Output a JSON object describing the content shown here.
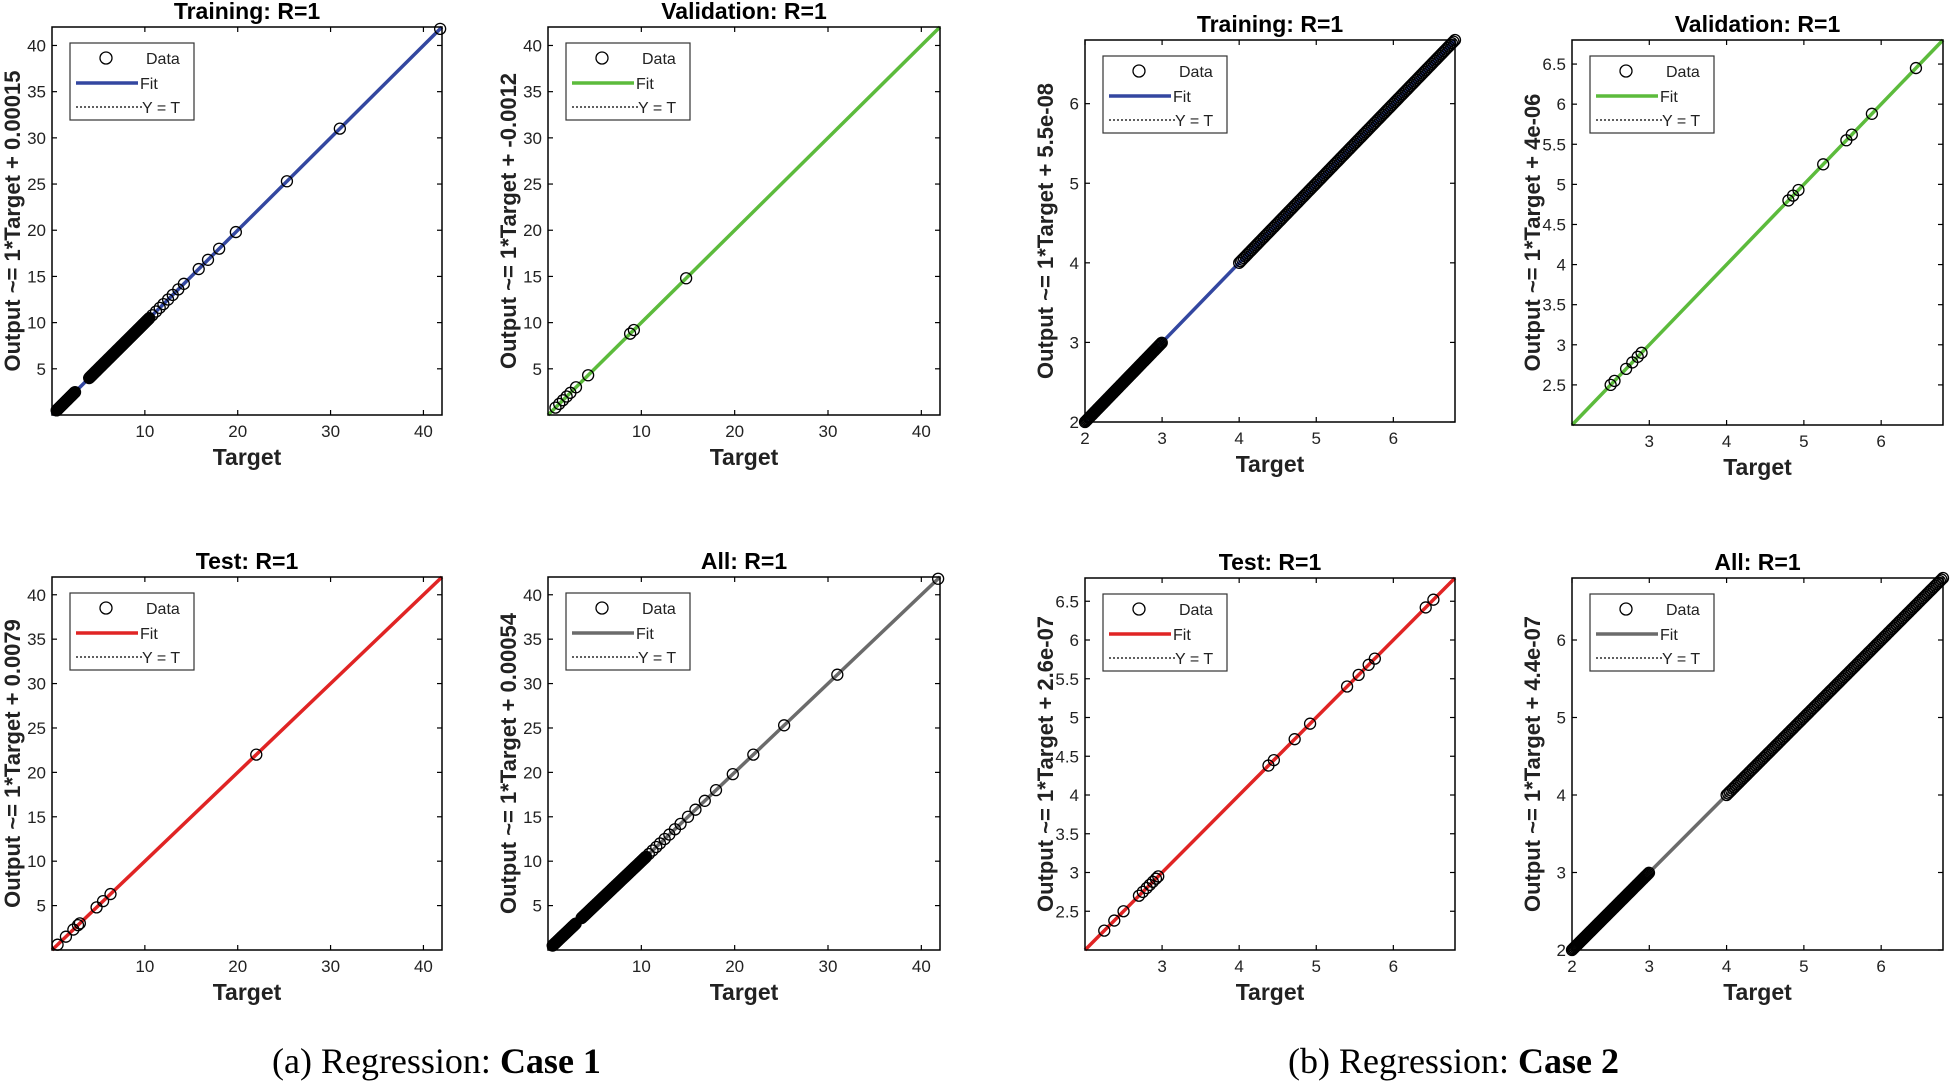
{
  "legend": {
    "data_label": "Data",
    "fit_label": "Fit",
    "yt_label": "Y = T"
  },
  "colors": {
    "training": "#3347a0",
    "validation": "#5cbb3c",
    "test": "#e02424",
    "all": "#6b6b6b",
    "marker": "#000000",
    "axis": "#000000"
  },
  "captions": {
    "case1": {
      "prefix": "(a) Regression: ",
      "bold": "Case 1"
    },
    "case2": {
      "prefix": "(b) Regression: ",
      "bold": "Case 2"
    }
  },
  "chart_data": [
    {
      "id": "c1-training",
      "type": "scatter",
      "group": "Case 1",
      "title": "Training: R=1",
      "xlabel": "Target",
      "ylabel": "Output ~= 1*Target + 0.00015",
      "xlim": [
        0,
        42
      ],
      "ylim": [
        0,
        42
      ],
      "xticks": [
        10,
        20,
        30,
        40
      ],
      "yticks": [
        5,
        10,
        15,
        20,
        25,
        30,
        35,
        40
      ],
      "fit_color_key": "training",
      "points": {
        "dense": [
          0.5,
          2.5,
          0.06,
          4,
          10.5,
          0.06
        ],
        "extra": [
          10.8,
          11.2,
          11.6,
          12,
          12.5,
          13,
          13.6,
          14.2,
          15.8,
          16.8,
          18,
          19.8,
          25.3,
          31,
          41.8
        ]
      }
    },
    {
      "id": "c1-validation",
      "type": "scatter",
      "group": "Case 1",
      "title": "Validation: R=1",
      "xlabel": "Target",
      "ylabel": "Output ~= 1*Target + -0.0012",
      "xlim": [
        0,
        42
      ],
      "ylim": [
        0,
        42
      ],
      "xticks": [
        10,
        20,
        30,
        40
      ],
      "yticks": [
        5,
        10,
        15,
        20,
        25,
        30,
        35,
        40
      ],
      "fit_color_key": "validation",
      "points": {
        "dense": [],
        "extra": [
          0.8,
          1.2,
          1.6,
          2,
          2.4,
          3,
          4.3,
          8.8,
          9.2,
          14.8
        ]
      }
    },
    {
      "id": "c2-training",
      "type": "scatter",
      "group": "Case 2",
      "title": "Training: R=1",
      "xlabel": "Target",
      "ylabel": "Output ~= 1*Target + 5.5e-08",
      "xlim": [
        2,
        6.8
      ],
      "ylim": [
        2,
        6.8
      ],
      "xticks": [
        2,
        3,
        4,
        5,
        6
      ],
      "yticks": [
        2,
        3,
        4,
        5,
        6
      ],
      "fit_color_key": "training",
      "points": {
        "dense": [
          2,
          3,
          0.012,
          4,
          6.8,
          0.02
        ],
        "extra": []
      }
    },
    {
      "id": "c2-validation",
      "type": "scatter",
      "group": "Case 2",
      "title": "Validation: R=1",
      "xlabel": "Target",
      "ylabel": "Output ~= 1*Target + 4e-06",
      "xlim": [
        2,
        6.8
      ],
      "ylim": [
        2,
        6.8
      ],
      "xticks": [
        3,
        4,
        5,
        6
      ],
      "yticks": [
        2.5,
        3,
        3.5,
        4,
        4.5,
        5,
        5.5,
        6,
        6.5
      ],
      "fit_color_key": "validation",
      "points": {
        "dense": [],
        "extra": [
          2.5,
          2.55,
          2.7,
          2.78,
          2.85,
          2.9,
          4.8,
          4.86,
          4.93,
          5.25,
          5.55,
          5.62,
          5.88,
          6.45
        ]
      }
    },
    {
      "id": "c1-test",
      "type": "scatter",
      "group": "Case 1",
      "title": "Test: R=1",
      "xlabel": "Target",
      "ylabel": "Output ~= 1*Target + 0.0079",
      "xlim": [
        0,
        42
      ],
      "ylim": [
        0,
        42
      ],
      "xticks": [
        10,
        20,
        30,
        40
      ],
      "yticks": [
        5,
        10,
        15,
        20,
        25,
        30,
        35,
        40
      ],
      "fit_color_key": "test",
      "points": {
        "dense": [],
        "extra": [
          0.6,
          1.5,
          2.3,
          2.8,
          3,
          4.8,
          5.5,
          6.3,
          22
        ]
      }
    },
    {
      "id": "c1-all",
      "type": "scatter",
      "group": "Case 1",
      "title": "All: R=1",
      "xlabel": "Target",
      "ylabel": "Output ~= 1*Target + 0.00054",
      "xlim": [
        0,
        42
      ],
      "ylim": [
        0,
        42
      ],
      "xticks": [
        10,
        20,
        30,
        40
      ],
      "yticks": [
        5,
        10,
        15,
        20,
        25,
        30,
        35,
        40
      ],
      "fit_color_key": "all",
      "points": {
        "dense": [
          0.5,
          3,
          0.06,
          3.6,
          10.5,
          0.06
        ],
        "extra": [
          10.8,
          11.2,
          11.6,
          12,
          12.5,
          13,
          13.6,
          14.2,
          15,
          15.8,
          16.8,
          18,
          19.8,
          22,
          25.3,
          31,
          41.8
        ]
      }
    },
    {
      "id": "c2-test",
      "type": "scatter",
      "group": "Case 2",
      "title": "Test: R=1",
      "xlabel": "Target",
      "ylabel": "Output ~= 1*Target + 2.6e-07",
      "xlim": [
        2,
        6.8
      ],
      "ylim": [
        2,
        6.8
      ],
      "xticks": [
        3,
        4,
        5,
        6
      ],
      "yticks": [
        2.5,
        3,
        3.5,
        4,
        4.5,
        5,
        5.5,
        6,
        6.5
      ],
      "fit_color_key": "test",
      "points": {
        "dense": [],
        "extra": [
          2.25,
          2.38,
          2.5,
          2.7,
          2.75,
          2.8,
          2.84,
          2.88,
          2.92,
          2.95,
          4.38,
          4.45,
          4.72,
          4.92,
          5.4,
          5.55,
          5.68,
          5.76,
          6.42,
          6.52
        ]
      }
    },
    {
      "id": "c2-all",
      "type": "scatter",
      "group": "Case 2",
      "title": "All: R=1",
      "xlabel": "Target",
      "ylabel": "Output ~= 1*Target + 4.4e-07",
      "xlim": [
        2,
        6.8
      ],
      "ylim": [
        2,
        6.8
      ],
      "xticks": [
        2,
        3,
        4,
        5,
        6
      ],
      "yticks": [
        2,
        3,
        4,
        5,
        6
      ],
      "fit_color_key": "all",
      "points": {
        "dense": [
          2,
          3,
          0.012,
          4,
          6.8,
          0.02
        ],
        "extra": []
      }
    }
  ]
}
